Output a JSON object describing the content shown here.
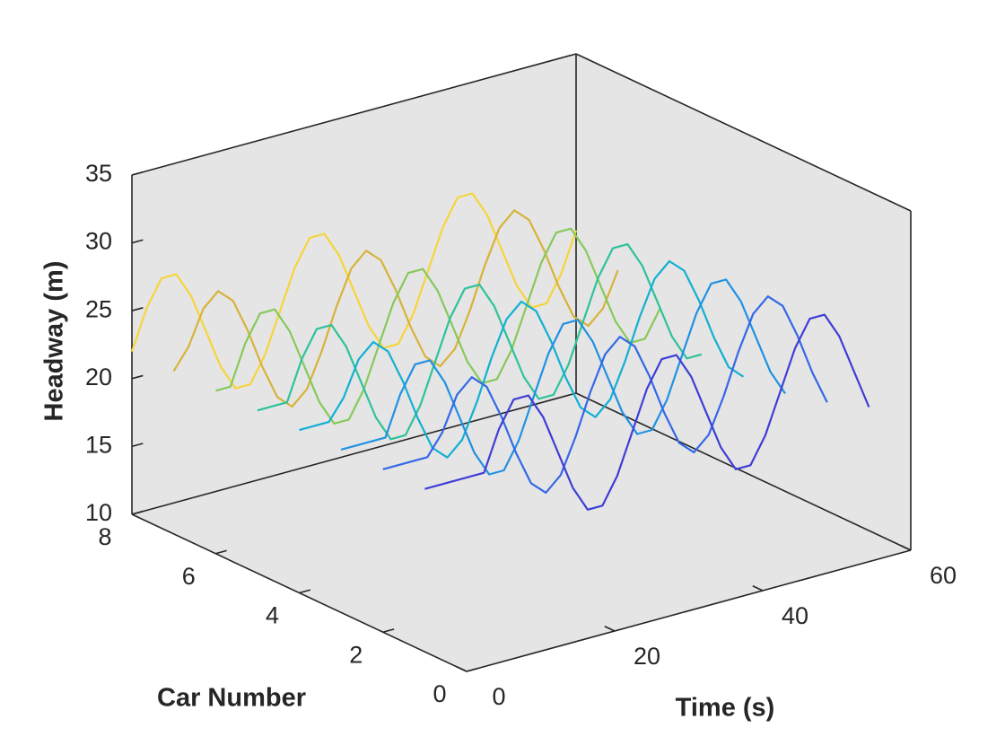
{
  "chart_data": {
    "type": "line3d",
    "xlabel": "Time (s)",
    "ylabel": "Car Number",
    "zlabel": "Headway (m)",
    "xlim": [
      0,
      60
    ],
    "xticks": [
      0,
      20,
      40,
      60
    ],
    "ylim": [
      0,
      8
    ],
    "yticks": [
      0,
      2,
      4,
      6,
      8
    ],
    "zlim": [
      10,
      35
    ],
    "zticks": [
      10,
      15,
      20,
      25,
      30,
      35
    ],
    "x": [
      0,
      2,
      4,
      6,
      8,
      10,
      12,
      14,
      16,
      18,
      20,
      22,
      24,
      26,
      28,
      30,
      32,
      34,
      36,
      38,
      40,
      42,
      44,
      46,
      48,
      50,
      52,
      54,
      56,
      58,
      60
    ],
    "series": [
      {
        "car": 1,
        "color": "#3e3ed6",
        "values": [
          22,
          22,
          22,
          22,
          22,
          24.9,
          26.8,
          26.8,
          24.9,
          22,
          19.1,
          17.2,
          17.2,
          19.1,
          22,
          24.9,
          26.8,
          26.8,
          24.9,
          22,
          19.1,
          17.2,
          17.2,
          19.1,
          22,
          24.9,
          26.8,
          26.8,
          24.9,
          22,
          19.1
        ]
      },
      {
        "car": 2,
        "color": "#3567e8",
        "values": [
          22,
          22,
          22,
          22,
          23.5,
          26,
          27,
          26,
          23.5,
          20.5,
          18,
          17,
          18,
          20.5,
          23.5,
          26,
          27,
          26,
          23.5,
          20.5,
          18,
          17,
          18,
          20.5,
          23.5,
          26,
          27,
          26,
          23.5,
          20.5,
          18
        ]
      },
      {
        "car": 3,
        "color": "#2191e3",
        "values": [
          22,
          22,
          22,
          22,
          24.9,
          26.8,
          26.8,
          24.9,
          22,
          19.1,
          17.2,
          17.2,
          19.1,
          22,
          24.9,
          26.8,
          26.8,
          24.9,
          22,
          19.1,
          17.2,
          17.2,
          19.1,
          22,
          24.9,
          26.8,
          26.8,
          24.9,
          22,
          19.1,
          17.2
        ]
      },
      {
        "car": 4,
        "color": "#12b0d2",
        "values": [
          22,
          22,
          22,
          23.5,
          26,
          27,
          26,
          23.5,
          20.5,
          18,
          17,
          18,
          20.5,
          23.5,
          26,
          27,
          26,
          23.5,
          20.5,
          18,
          17,
          18,
          20.5,
          23.5,
          26,
          27,
          26,
          23.5,
          20.5,
          18,
          17
        ]
      },
      {
        "car": 5,
        "color": "#2dc29b",
        "values": [
          22,
          22,
          22,
          24.9,
          26.8,
          26.8,
          24.9,
          22,
          19.1,
          17.2,
          17.2,
          19.1,
          22,
          24.9,
          26.8,
          26.8,
          24.9,
          22,
          19.1,
          17.2,
          17.2,
          19.1,
          22,
          24.9,
          26.8,
          26.8,
          24.9,
          22,
          19.1,
          17.2,
          17.2
        ]
      },
      {
        "car": 6,
        "color": "#86c95a",
        "values": [
          22,
          22,
          24.9,
          26.8,
          26.8,
          24.9,
          22,
          19.1,
          17.2,
          17.2,
          19.1,
          22,
          24.9,
          26.8,
          26.8,
          24.9,
          22,
          19.1,
          17.2,
          17.2,
          19.1,
          22,
          24.9,
          26.8,
          26.8,
          24.9,
          22,
          19.1,
          17.2,
          17.2,
          19.1
        ]
      },
      {
        "car": 7,
        "color": "#d6b33a",
        "values": [
          22,
          23.5,
          26,
          27,
          26,
          23.5,
          20.5,
          18,
          17,
          18,
          20.5,
          23.5,
          26,
          27,
          26,
          23.5,
          20.5,
          18,
          17,
          18,
          20.5,
          23.5,
          26,
          27,
          26,
          23.5,
          20.5,
          18,
          17,
          18,
          20.5
        ]
      },
      {
        "car": 8,
        "color": "#f7d43c",
        "values": [
          22,
          24.9,
          26.8,
          26.8,
          24.9,
          22,
          19.1,
          17.2,
          17.2,
          19.1,
          22,
          24.9,
          26.8,
          26.8,
          24.9,
          22,
          19.1,
          17.2,
          17.2,
          19.1,
          22,
          24.9,
          26.8,
          26.8,
          24.9,
          22,
          19.1,
          17.2,
          17.2,
          19.1,
          22
        ]
      }
    ]
  }
}
